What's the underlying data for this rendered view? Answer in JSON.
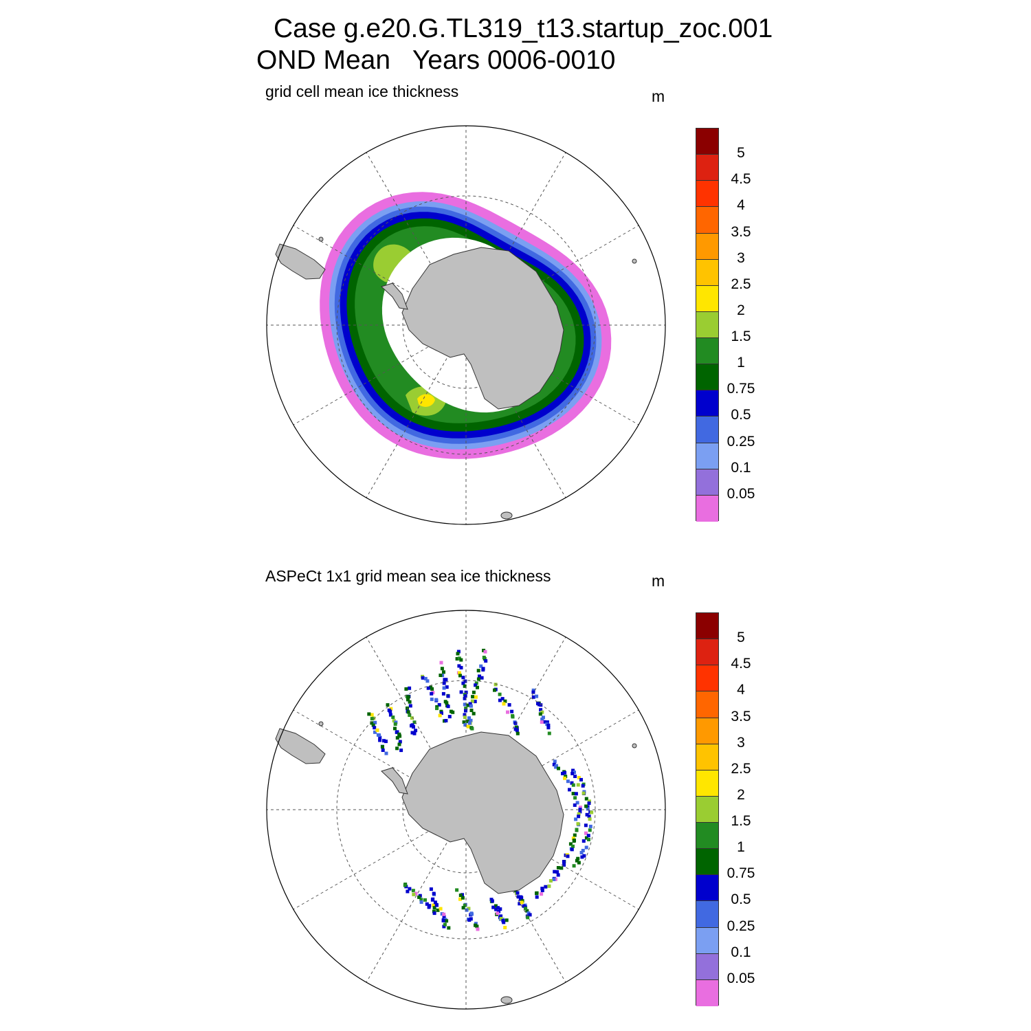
{
  "figure": {
    "title_line1": "Case g.e20.G.TL319_t13.startup_zoc.001",
    "title_line2": "OND Mean   Years 0006-0010"
  },
  "colors": {
    "land": "#bfbfbf",
    "levels": [
      "#e96ee0",
      "#9370db",
      "#7b9ff2",
      "#4169e1",
      "#0000cd",
      "#006400",
      "#228b22",
      "#9acd32",
      "#ffe600",
      "#ffc300",
      "#ff9900",
      "#ff6600",
      "#ff3300",
      "#dd2211",
      "#8b0000"
    ]
  },
  "colorbar": {
    "ticks": [
      "0.05",
      "0.1",
      "0.25",
      "0.5",
      "0.75",
      "1",
      "1.5",
      "2",
      "2.5",
      "3",
      "3.5",
      "4",
      "4.5",
      "5"
    ]
  },
  "panels": [
    {
      "label": "grid cell mean ice thickness",
      "unit": "m"
    },
    {
      "label": "ASPeCt 1x1 grid mean sea ice thickness",
      "unit": "m"
    }
  ]
}
